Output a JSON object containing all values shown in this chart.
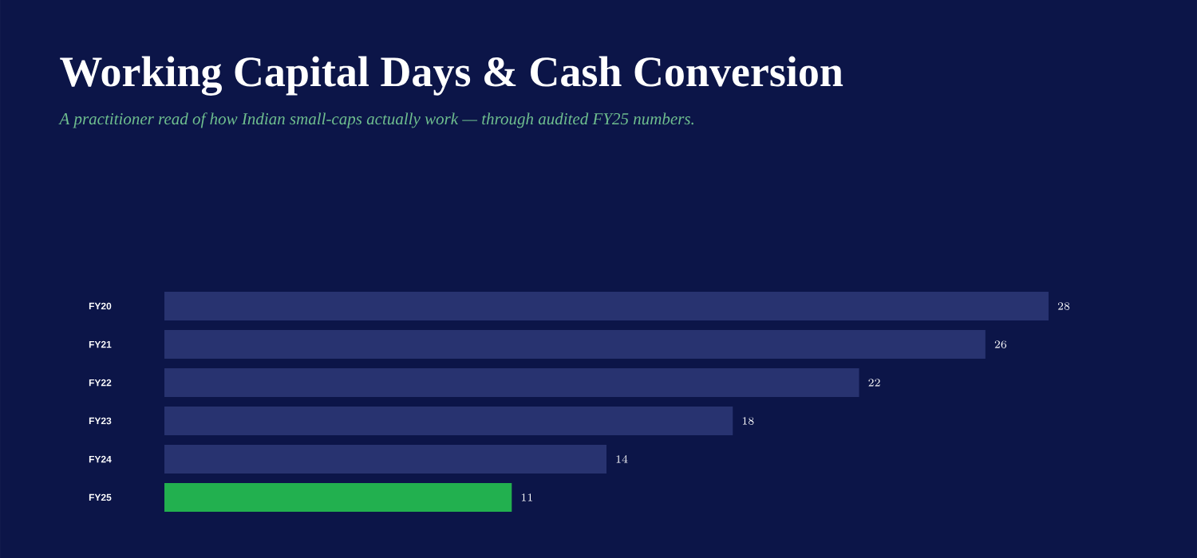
{
  "chart_data": {
    "type": "bar",
    "orientation": "horizontal",
    "title": "Working Capital Days & Cash Conversion",
    "subtitle": "A practitioner read of how Indian small-caps actually work — through audited FY25 numbers.",
    "categories": [
      "FY20",
      "FY21",
      "FY22",
      "FY23",
      "FY24",
      "FY25"
    ],
    "values": [
      28,
      26,
      22,
      18,
      14,
      11
    ],
    "colors": [
      "#283370",
      "#283370",
      "#283370",
      "#283370",
      "#283370",
      "#22b04f"
    ],
    "data_labels": true
  }
}
